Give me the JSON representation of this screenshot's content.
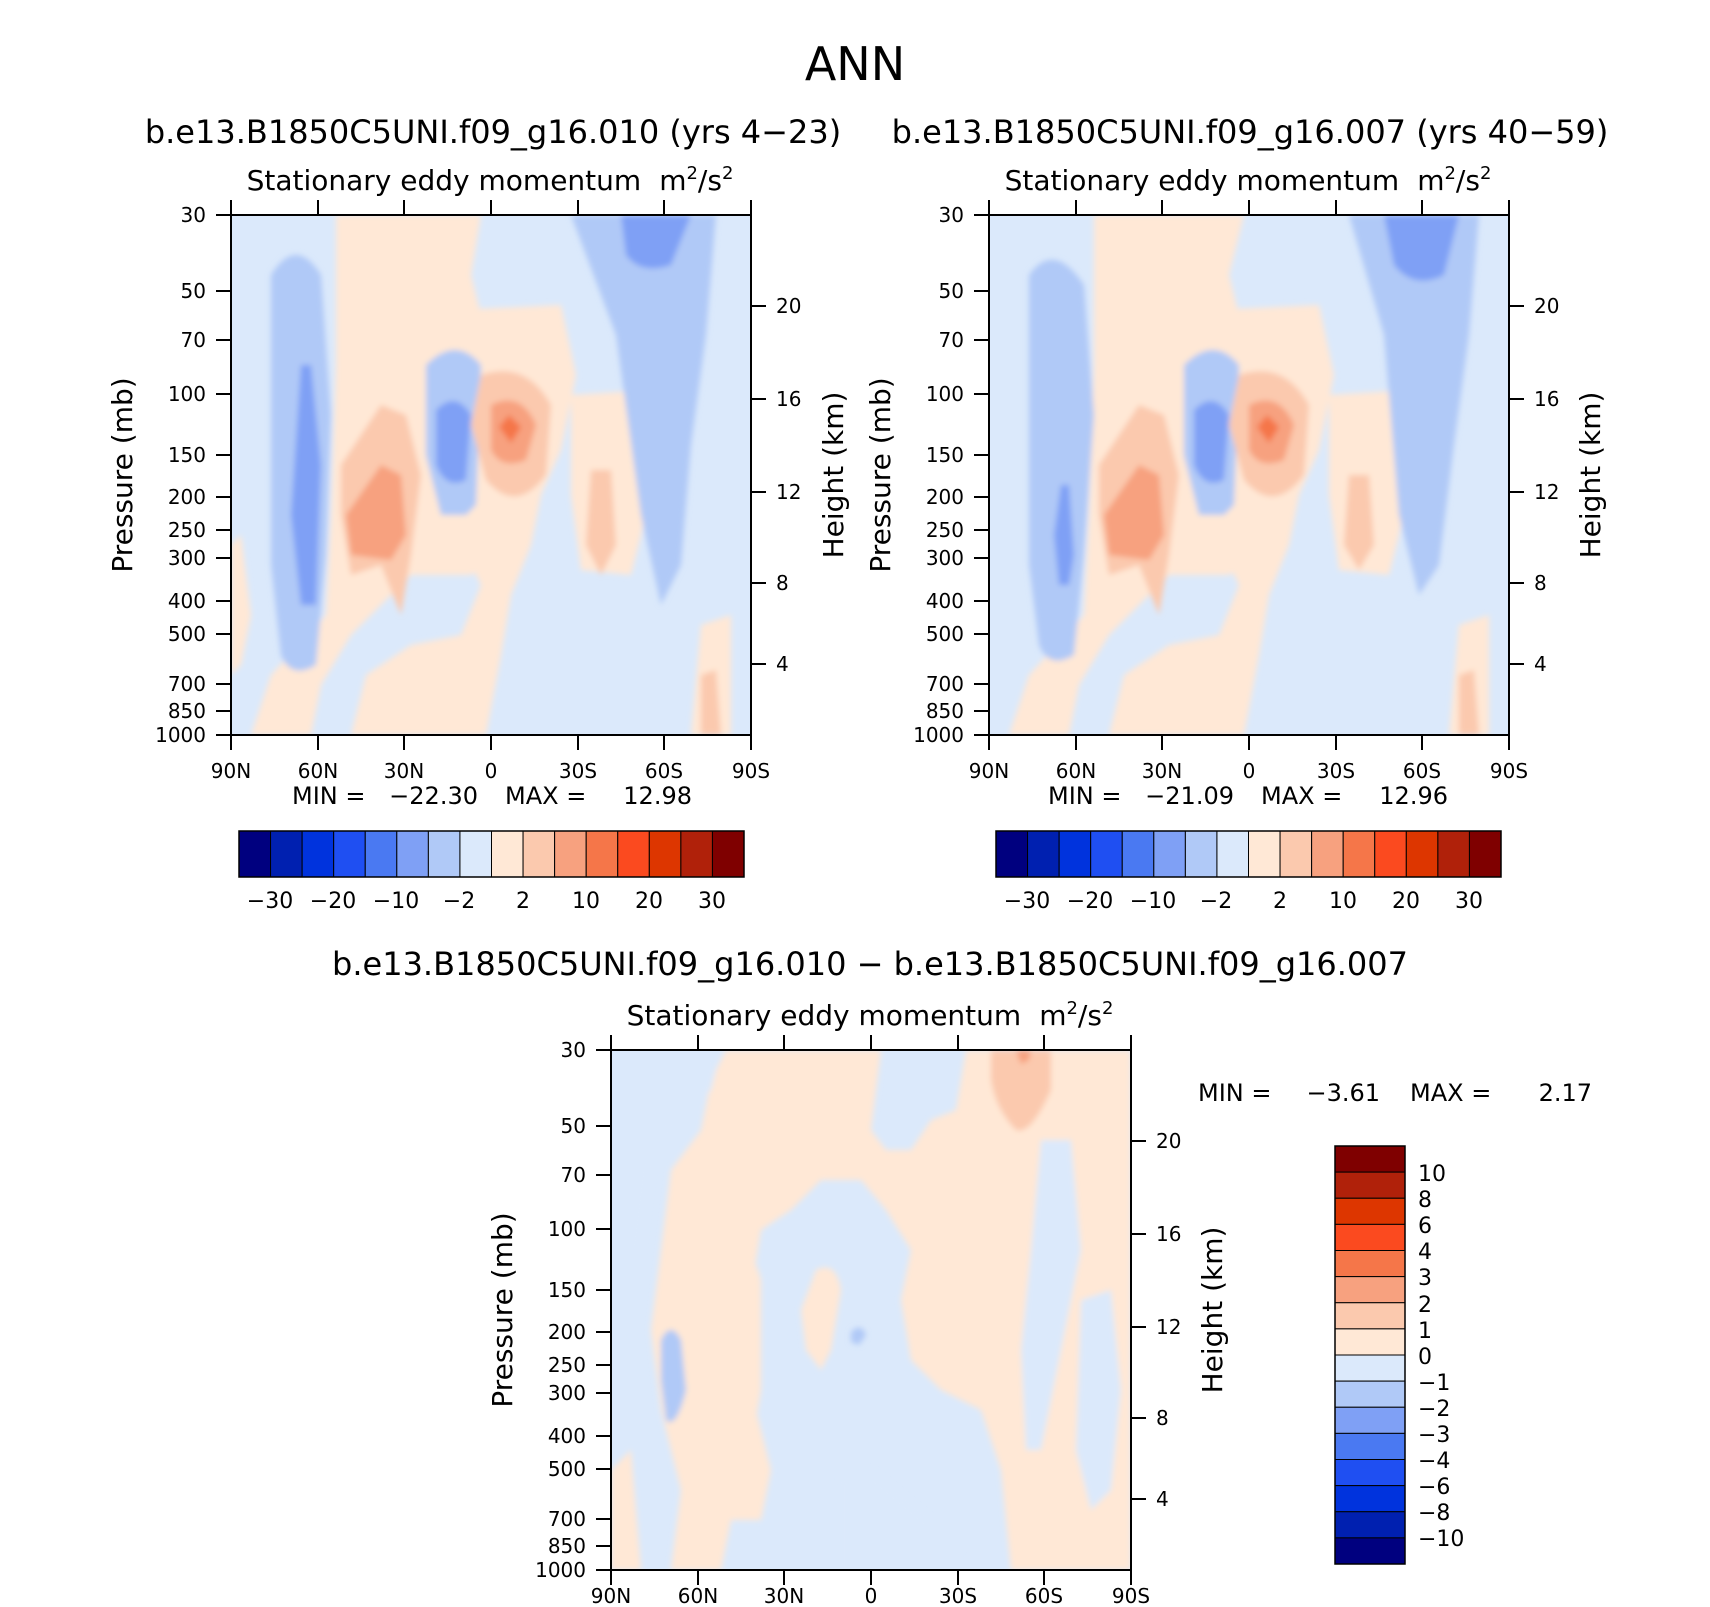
{
  "figure": {
    "title": "ANN",
    "colors": {
      "scale": [
        "#00007f",
        "#0020b0",
        "#0033dd",
        "#1f4ff2",
        "#4a79f2",
        "#7fa0f5",
        "#b0c9f7",
        "#dbe9fb",
        "#ffe8d6",
        "#fbc9ae",
        "#f7a17f",
        "#f57649",
        "#fb4a1f",
        "#dd3600",
        "#b0210a",
        "#7f0000"
      ]
    }
  },
  "chart_data": [
    {
      "type": "heatmap",
      "panel": "top-left",
      "case_title": "b.e13.B1850C5UNI.f09_g16.010 (yrs 4−23)",
      "title": "Stationary eddy momentum",
      "units": "m²/s²",
      "units_base": "m",
      "units_mid": "/s",
      "xlabel": "",
      "ylabel": "Pressure (mb)",
      "ylabel_right": "Height (km)",
      "x_ticks": [
        "90N",
        "60N",
        "30N",
        "0",
        "30S",
        "60S",
        "90S"
      ],
      "y_ticks": [
        "30",
        "50",
        "70",
        "100",
        "150",
        "200",
        "250",
        "300",
        "400",
        "500",
        "700",
        "850",
        "1000"
      ],
      "y_right_ticks": [
        "20",
        "16",
        "12",
        "8",
        "4"
      ],
      "min_label": "MIN =",
      "min_value": "−22.30",
      "max_label": "MAX =",
      "max_value": "12.98",
      "colorbar_labels": [
        "−30",
        "−20",
        "−10",
        "−2",
        "2",
        "10",
        "20",
        "30"
      ],
      "features": [
        {
          "lat": 65,
          "p": 250,
          "value": -10
        },
        {
          "lat": 65,
          "p": 100,
          "value": -6
        },
        {
          "lat": 35,
          "p": 250,
          "value": 9
        },
        {
          "lat": 12,
          "p": 150,
          "value": -9
        },
        {
          "lat": -10,
          "p": 150,
          "value": 12.98
        },
        {
          "lat": -45,
          "p": 250,
          "value": 3
        },
        {
          "lat": -70,
          "p": 30,
          "value": -8
        },
        {
          "lat": 5,
          "p": 600,
          "value": -1
        }
      ]
    },
    {
      "type": "heatmap",
      "panel": "top-right",
      "case_title": "b.e13.B1850C5UNI.f09_g16.007 (yrs 40−59)",
      "title": "Stationary eddy momentum",
      "units": "m²/s²",
      "units_base": "m",
      "units_mid": "/s",
      "xlabel": "",
      "ylabel": "Pressure (mb)",
      "ylabel_right": "Height (km)",
      "x_ticks": [
        "90N",
        "60N",
        "30N",
        "0",
        "30S",
        "60S",
        "90S"
      ],
      "y_ticks": [
        "30",
        "50",
        "70",
        "100",
        "150",
        "200",
        "250",
        "300",
        "400",
        "500",
        "700",
        "850",
        "1000"
      ],
      "y_right_ticks": [
        "20",
        "16",
        "12",
        "8",
        "4"
      ],
      "min_label": "MIN =",
      "min_value": "−21.09",
      "max_label": "MAX =",
      "max_value": "12.96",
      "colorbar_labels": [
        "−30",
        "−20",
        "−10",
        "−2",
        "2",
        "10",
        "20",
        "30"
      ],
      "features": [
        {
          "lat": 65,
          "p": 250,
          "value": -10
        },
        {
          "lat": 65,
          "p": 100,
          "value": -5
        },
        {
          "lat": 35,
          "p": 250,
          "value": 9
        },
        {
          "lat": 12,
          "p": 150,
          "value": -9
        },
        {
          "lat": -10,
          "p": 150,
          "value": 12.96
        },
        {
          "lat": -45,
          "p": 250,
          "value": 3
        },
        {
          "lat": -70,
          "p": 30,
          "value": -7
        },
        {
          "lat": 5,
          "p": 600,
          "value": -1
        }
      ]
    },
    {
      "type": "heatmap",
      "panel": "bottom",
      "case_title": "b.e13.B1850C5UNI.f09_g16.010 − b.e13.B1850C5UNI.f09_g16.007",
      "title": "Stationary eddy momentum",
      "units": "m²/s²",
      "units_base": "m",
      "units_mid": "/s",
      "xlabel": "",
      "ylabel": "Pressure (mb)",
      "ylabel_right": "Height (km)",
      "x_ticks": [
        "90N",
        "60N",
        "30N",
        "0",
        "30S",
        "60S",
        "90S"
      ],
      "y_ticks": [
        "30",
        "50",
        "70",
        "100",
        "150",
        "200",
        "250",
        "300",
        "400",
        "500",
        "700",
        "850",
        "1000"
      ],
      "y_right_ticks": [
        "20",
        "16",
        "12",
        "8",
        "4"
      ],
      "min_label": "MIN =",
      "min_value": "−3.61",
      "max_label": "MAX =",
      "max_value": "2.17",
      "colorbar_labels": [
        "10",
        "8",
        "6",
        "4",
        "3",
        "2",
        "1",
        "0",
        "−1",
        "−2",
        "−3",
        "−4",
        "−6",
        "−8",
        "−10"
      ],
      "features": [
        {
          "lat": -65,
          "p": 40,
          "value": 2
        },
        {
          "lat": 65,
          "p": 300,
          "value": -2
        },
        {
          "lat": 7,
          "p": 200,
          "value": -2
        },
        {
          "lat": 45,
          "p": 150,
          "value": 0.5
        },
        {
          "lat": -20,
          "p": 200,
          "value": 0.5
        }
      ]
    }
  ]
}
